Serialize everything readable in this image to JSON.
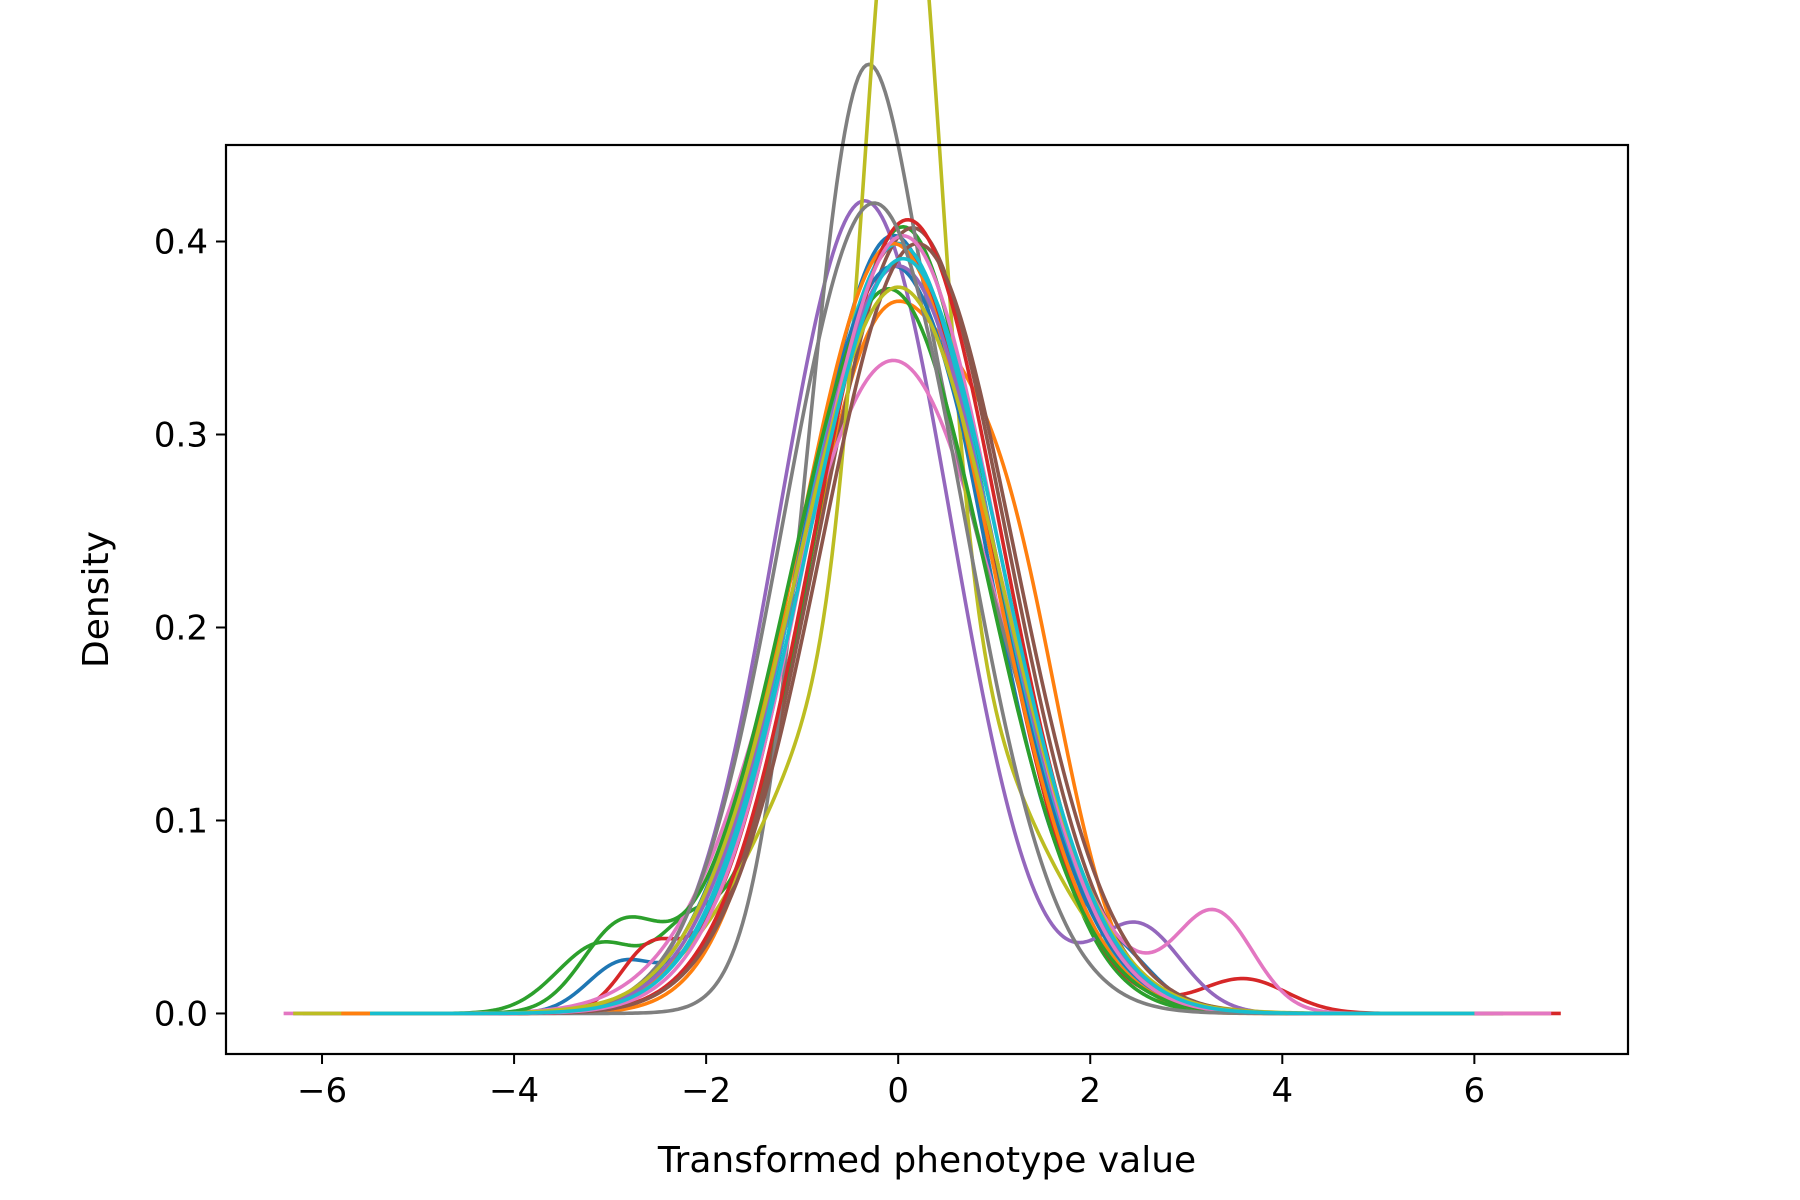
{
  "chart_data": {
    "type": "line",
    "title": "",
    "xlabel": "Transformed phenotype value",
    "ylabel": "Density",
    "xlim": [
      -7,
      7.6
    ],
    "ylim": [
      -0.021,
      0.45
    ],
    "xticks": [
      -6,
      -4,
      -2,
      0,
      2,
      4,
      6
    ],
    "yticks": [
      0.0,
      0.1,
      0.2,
      0.3,
      0.4
    ],
    "xtick_labels": [
      "−6",
      "−4",
      "−2",
      "0",
      "2",
      "4",
      "6"
    ],
    "ytick_labels": [
      "0.0",
      "0.1",
      "0.2",
      "0.3",
      "0.4"
    ],
    "grid": false,
    "legend": "none",
    "series": [
      {
        "color": "#1f77b4",
        "x_range": [
          -6.3,
          5.9
        ],
        "comps": [
          [
            0.96,
            -0.05,
            0.95
          ],
          [
            0.02,
            -2.9,
            0.35
          ],
          [
            0.02,
            2.3,
            0.4
          ]
        ]
      },
      {
        "color": "#ff7f0e",
        "x_range": [
          -6.1,
          6.2
        ],
        "comps": [
          [
            0.75,
            -0.15,
            0.85
          ],
          [
            0.25,
            1.2,
            0.6
          ]
        ]
      },
      {
        "color": "#2ca02c",
        "x_range": [
          -6.2,
          6.0
        ],
        "comps": [
          [
            0.94,
            0.05,
            0.92
          ],
          [
            0.04,
            -3.1,
            0.45
          ],
          [
            0.02,
            -2.2,
            0.3
          ]
        ]
      },
      {
        "color": "#d62728",
        "x_range": [
          -5.8,
          6.9
        ],
        "comps": [
          [
            0.96,
            0.0,
            0.96
          ],
          [
            0.02,
            -2.6,
            0.3
          ],
          [
            0.02,
            3.6,
            0.45
          ]
        ]
      },
      {
        "color": "#9467bd",
        "x_range": [
          -5.9,
          6.1
        ],
        "comps": [
          [
            0.95,
            -0.35,
            0.9
          ],
          [
            0.05,
            2.5,
            0.45
          ]
        ]
      },
      {
        "color": "#8c564b",
        "x_range": [
          -5.6,
          6.3
        ],
        "comps": [
          [
            1.0,
            0.15,
            0.98
          ]
        ]
      },
      {
        "color": "#e377c2",
        "x_range": [
          -6.4,
          6.8
        ],
        "comps": [
          [
            0.95,
            -0.05,
            1.12
          ],
          [
            0.05,
            3.3,
            0.4
          ]
        ]
      },
      {
        "color": "#7f7f7f",
        "x_range": [
          -5.4,
          5.8
        ],
        "comps": [
          [
            0.5,
            -0.45,
            0.55
          ],
          [
            0.5,
            0.55,
            0.85
          ]
        ]
      },
      {
        "color": "#bcbd22",
        "x_range": [
          -6.3,
          5.7
        ],
        "comps": [
          [
            0.4,
            0.05,
            0.38
          ],
          [
            0.6,
            0.0,
            1.15
          ]
        ]
      },
      {
        "color": "#17becf",
        "x_range": [
          -5.5,
          6.0
        ],
        "comps": [
          [
            1.0,
            0.0,
            1.0
          ]
        ]
      },
      {
        "color": "#1f77b4",
        "x_range": [
          -5.5,
          6.0
        ],
        "comps": [
          [
            1.0,
            -0.05,
            1.03
          ]
        ]
      },
      {
        "color": "#ff7f0e",
        "x_range": [
          -5.8,
          6.0
        ],
        "comps": [
          [
            1.0,
            -0.05,
            1.0
          ]
        ]
      },
      {
        "color": "#2ca02c",
        "x_range": [
          -5.5,
          6.0
        ],
        "comps": [
          [
            0.96,
            -0.1,
            1.02
          ],
          [
            0.04,
            -2.9,
            0.4
          ]
        ]
      },
      {
        "color": "#d62728",
        "x_range": [
          -5.5,
          6.0
        ],
        "comps": [
          [
            1.0,
            0.1,
            0.97
          ]
        ]
      },
      {
        "color": "#9467bd",
        "x_range": [
          -5.5,
          6.0
        ],
        "comps": [
          [
            1.0,
            0.0,
            1.03
          ]
        ]
      },
      {
        "color": "#8c564b",
        "x_range": [
          -5.5,
          6.0
        ],
        "comps": [
          [
            1.0,
            0.2,
            1.0
          ]
        ]
      },
      {
        "color": "#e377c2",
        "x_range": [
          -5.5,
          6.0
        ],
        "comps": [
          [
            1.0,
            0.05,
            0.99
          ]
        ]
      },
      {
        "color": "#7f7f7f",
        "x_range": [
          -5.5,
          6.0
        ],
        "comps": [
          [
            1.0,
            -0.25,
            0.95
          ]
        ]
      },
      {
        "color": "#bcbd22",
        "x_range": [
          -5.5,
          6.0
        ],
        "comps": [
          [
            1.0,
            0.0,
            1.06
          ]
        ]
      },
      {
        "color": "#17becf",
        "x_range": [
          -5.5,
          6.0
        ],
        "comps": [
          [
            1.0,
            0.05,
            1.02
          ]
        ]
      }
    ]
  }
}
